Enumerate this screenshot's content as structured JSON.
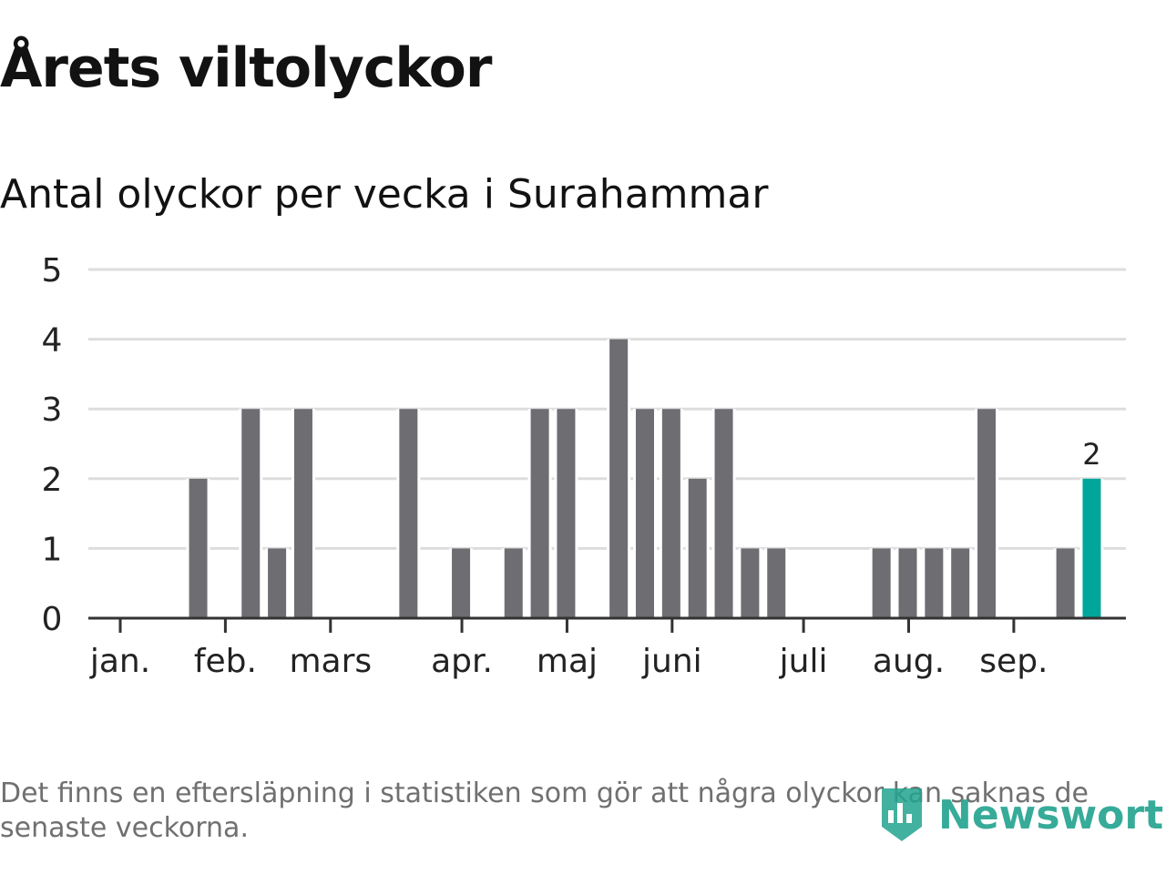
{
  "header": {
    "title": "Årets viltolyckor",
    "subtitle": "Antal olyckor per vecka i Surahammar"
  },
  "footnote": "Det finns en eftersläpning i statistiken som gör att några olyckor kan saknas de senaste veckorna.",
  "logo": {
    "text": "Newsworthy",
    "icon": "bar-chart-badge-icon",
    "color": "#22a38e"
  },
  "colors": {
    "bar": "#6e6d72",
    "highlight": "#00a69a",
    "grid": "#dddddd",
    "axis": "#333333"
  },
  "chart_data": {
    "type": "bar",
    "title": "Antal olyckor per vecka i Surahammar",
    "xlabel": "",
    "ylabel": "",
    "ylim": [
      0,
      5
    ],
    "yticks": [
      0,
      1,
      2,
      3,
      4,
      5
    ],
    "grid": true,
    "weeks": [
      1,
      2,
      3,
      4,
      5,
      6,
      7,
      8,
      9,
      10,
      11,
      12,
      13,
      14,
      15,
      16,
      17,
      18,
      19,
      20,
      21,
      22,
      23,
      24,
      25,
      26,
      27,
      28,
      29,
      30,
      31,
      32,
      33,
      34,
      35,
      36,
      37,
      38
    ],
    "values": [
      0,
      0,
      0,
      2,
      0,
      3,
      1,
      3,
      0,
      0,
      0,
      3,
      0,
      1,
      0,
      1,
      3,
      3,
      0,
      4,
      3,
      3,
      2,
      3,
      1,
      1,
      0,
      0,
      0,
      1,
      1,
      1,
      1,
      3,
      0,
      0,
      1,
      2
    ],
    "highlight_week": 38,
    "highlight_label": "2",
    "month_ticks": [
      {
        "label": "jan.",
        "week": 1
      },
      {
        "label": "feb.",
        "week": 5
      },
      {
        "label": "mars",
        "week": 9
      },
      {
        "label": "apr.",
        "week": 14
      },
      {
        "label": "maj",
        "week": 18
      },
      {
        "label": "juni",
        "week": 22
      },
      {
        "label": "juli",
        "week": 27
      },
      {
        "label": "aug.",
        "week": 31
      },
      {
        "label": "sep.",
        "week": 35
      }
    ]
  }
}
